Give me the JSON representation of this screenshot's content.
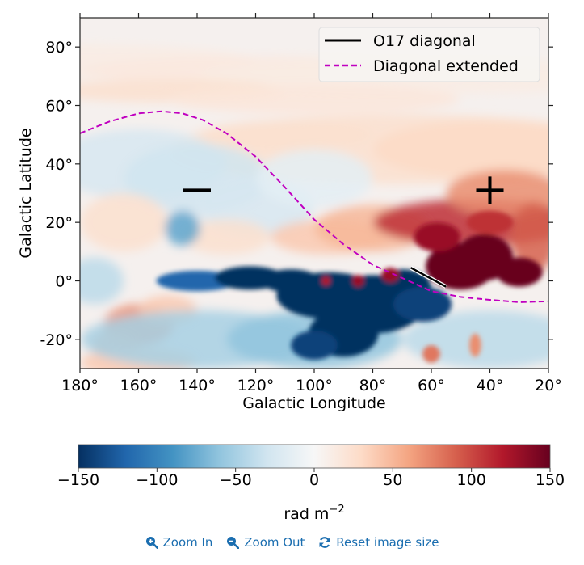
{
  "chart_data": {
    "type": "heatmap",
    "title": "",
    "xlabel": "Galactic Longitude",
    "ylabel": "Galactic Latitude",
    "xlim": [
      180,
      20
    ],
    "ylim": [
      -30,
      90
    ],
    "x_ticks": [
      180,
      160,
      140,
      120,
      100,
      80,
      60,
      40,
      20
    ],
    "x_tick_labels": [
      "180°",
      "160°",
      "140°",
      "120°",
      "100°",
      "80°",
      "60°",
      "40°",
      "20°"
    ],
    "y_ticks": [
      80,
      60,
      40,
      20,
      0,
      -20
    ],
    "y_tick_labels": [
      "80°",
      "60°",
      "40°",
      "20°",
      "0°",
      "-20°"
    ],
    "grid": false,
    "colormap": "RdBu_r",
    "colorbar": {
      "label": "rad m",
      "label_exponent": "−2",
      "range": [
        -150,
        150
      ],
      "ticks": [
        -150,
        -100,
        -50,
        0,
        50,
        100,
        150
      ],
      "tick_labels": [
        "−150",
        "−100",
        "−50",
        "0",
        "50",
        "100",
        "150"
      ],
      "stops": [
        "#053061",
        "#2166ac",
        "#4393c3",
        "#92c5de",
        "#d1e5f0",
        "#f7f7f7",
        "#fddbc7",
        "#f4a582",
        "#d6604d",
        "#b2182b",
        "#67001f"
      ]
    },
    "legend": {
      "position": "top-right",
      "entries": [
        {
          "label": "O17 diagonal",
          "color": "#000000",
          "style": "solid"
        },
        {
          "label": "Diagonal extended",
          "color": "#c000c0",
          "style": "dashed"
        }
      ]
    },
    "series": [
      {
        "name": "O17 diagonal",
        "style": "solid",
        "color": "#000000",
        "points": [
          [
            67,
            4.5
          ],
          [
            55,
            -2
          ]
        ]
      },
      {
        "name": "Diagonal extended",
        "style": "dashed",
        "color": "#c000c0",
        "points": [
          [
            180,
            50.5
          ],
          [
            170,
            54.5
          ],
          [
            160,
            57.3
          ],
          [
            152,
            58
          ],
          [
            145,
            57.3
          ],
          [
            138,
            55
          ],
          [
            130,
            50.5
          ],
          [
            120,
            42.5
          ],
          [
            110,
            32
          ],
          [
            100,
            21
          ],
          [
            90,
            12.5
          ],
          [
            80,
            5.5
          ],
          [
            70,
            1
          ],
          [
            60,
            -3.5
          ],
          [
            50,
            -5.5
          ],
          [
            40,
            -6.5
          ],
          [
            30,
            -7.3
          ],
          [
            20,
            -7
          ]
        ]
      }
    ],
    "annotations": [
      {
        "symbol": "−",
        "meaning": "negative-region",
        "x": 140,
        "y": 31
      },
      {
        "symbol": "+",
        "meaning": "positive-region",
        "x": 40,
        "y": 31
      }
    ],
    "field_features": [
      {
        "desc": "strong negative band along plane",
        "lon_range": [
          120,
          55
        ],
        "lat_range": [
          -20,
          5
        ],
        "value": -150
      },
      {
        "desc": "strong positive region",
        "lon_range": [
          60,
          25
        ],
        "lat_range": [
          -5,
          25
        ],
        "value": 150
      },
      {
        "desc": "positive patch",
        "lon": 158,
        "lat": -15,
        "value": 90
      },
      {
        "desc": "negative patch",
        "lon": 145,
        "lat": 17,
        "value": -80
      }
    ]
  },
  "toolbar": {
    "zoom_in": "Zoom In",
    "zoom_out": "Zoom Out",
    "reset": "Reset image size"
  }
}
